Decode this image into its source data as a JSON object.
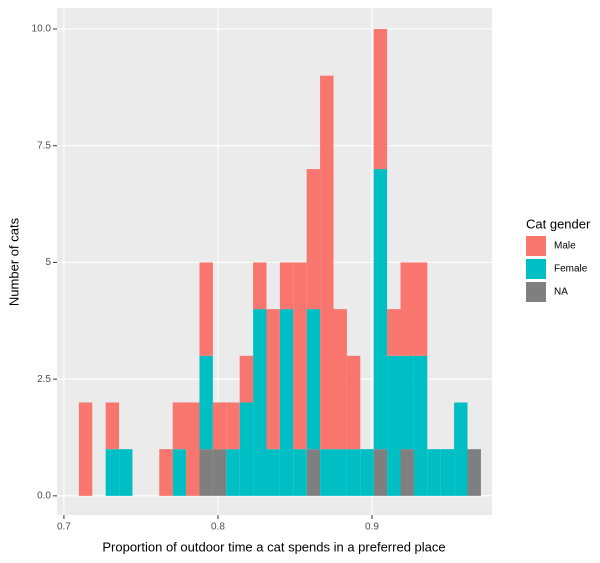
{
  "chart_data": {
    "type": "histogram",
    "x_label": "Proportion of outdoor time a cat spends in a preferred place",
    "y_label": "Number of cats",
    "legend_title": "Cat gender",
    "bins": [
      0.7097,
      0.7184,
      0.7271,
      0.7358,
      0.7445,
      0.7532,
      0.7619,
      0.7706,
      0.7793,
      0.788,
      0.7967,
      0.8054,
      0.8141,
      0.8228,
      0.8315,
      0.8402,
      0.8489,
      0.8576,
      0.8663,
      0.875,
      0.8837,
      0.8924,
      0.9011,
      0.9098,
      0.9185,
      0.9272,
      0.9359,
      0.9446,
      0.9533,
      0.962,
      0.9707
    ],
    "series": [
      {
        "name": "Male",
        "color": "#f8766d",
        "values": [
          2,
          0,
          1,
          0,
          0,
          0,
          1,
          1,
          2,
          2,
          1,
          1,
          1,
          1,
          3,
          1,
          4,
          3,
          8,
          3,
          2,
          0,
          3,
          1,
          2,
          2,
          0,
          0,
          0,
          0
        ]
      },
      {
        "name": "Female",
        "color": "#00bfc4",
        "values": [
          0,
          0,
          1,
          1,
          0,
          0,
          0,
          1,
          0,
          2,
          0,
          1,
          2,
          4,
          1,
          4,
          1,
          3,
          1,
          1,
          1,
          1,
          6,
          3,
          2,
          3,
          1,
          1,
          2,
          0
        ]
      },
      {
        "name": "NA",
        "color": "#7f7f7f",
        "values": [
          0,
          0,
          0,
          0,
          0,
          0,
          0,
          0,
          0,
          1,
          1,
          0,
          0,
          0,
          0,
          0,
          0,
          1,
          0,
          0,
          0,
          0,
          1,
          0,
          1,
          0,
          0,
          0,
          0,
          1
        ]
      }
    ],
    "stacked": true,
    "xlim": [
      0.6955,
      0.9779
    ],
    "ylim": [
      -0.41,
      10.45
    ],
    "xticks": [
      0.7,
      0.8,
      0.9
    ],
    "yticks": [
      {
        "value": 0,
        "label": "0.0"
      },
      2.5,
      5,
      7.5,
      {
        "value": 10,
        "label": "10.0"
      }
    ],
    "grid": true,
    "legend": "right"
  }
}
